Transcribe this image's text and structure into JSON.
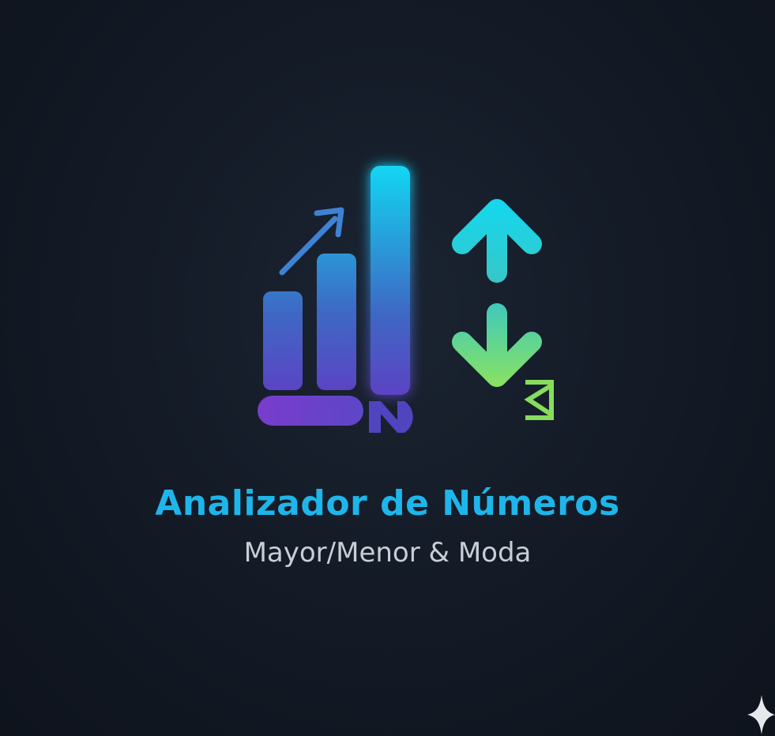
{
  "title": "Analizador de Números",
  "subtitle": "Mayor/Menor & Moda",
  "colors": {
    "background": "#121925",
    "title": "#1eb6ea",
    "subtitle": "#c9ced6",
    "gradient_top": "#12d6f2",
    "gradient_mid": "#3d69c4",
    "gradient_bottom": "#6a32c4",
    "arrow_green": "#8ee35c"
  },
  "icons": {
    "chart": "bar-chart-icon",
    "trend": "trend-arrow-icon",
    "up": "arrow-up-icon",
    "down": "arrow-down-icon",
    "mark": "n-letter-icon",
    "sigma": "sigma-icon",
    "sparkle": "sparkle-icon"
  }
}
